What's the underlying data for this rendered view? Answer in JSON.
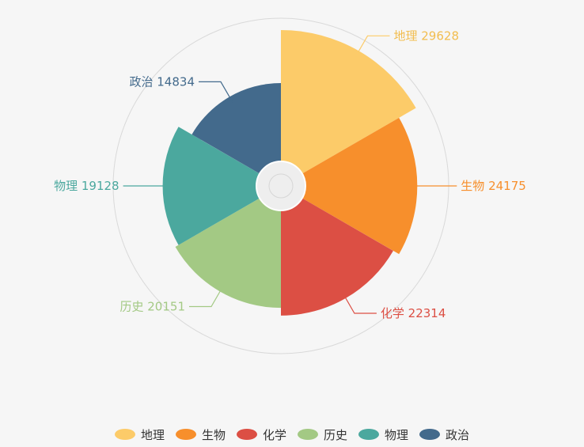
{
  "chart_data": {
    "type": "pie",
    "variant": "rose",
    "categories": [
      "地理",
      "生物",
      "化学",
      "历史",
      "物理",
      "政治"
    ],
    "values": [
      29628,
      24175,
      22314,
      20151,
      19128,
      14834
    ],
    "colors": [
      "#fccb69",
      "#f78f2c",
      "#dc4f44",
      "#a3c984",
      "#4ba89e",
      "#436a8c"
    ],
    "title": "",
    "legend_position": "bottom"
  }
}
